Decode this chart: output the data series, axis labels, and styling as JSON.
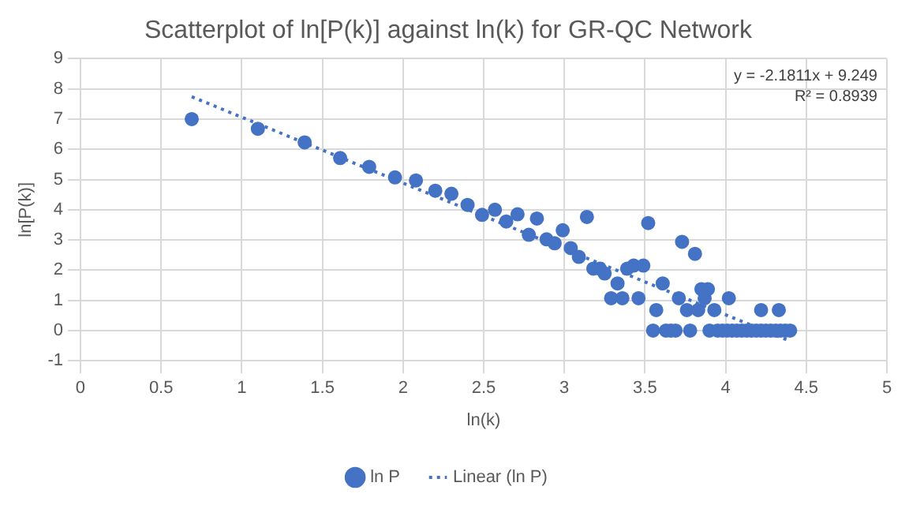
{
  "chart_data": {
    "type": "scatter",
    "title": "Scatterplot of ln[P(k)] against ln(k) for GR-QC Network",
    "xlabel": "ln(k)",
    "ylabel": "ln[P(k)]",
    "xlim": [
      0,
      5
    ],
    "xticks": [
      0,
      0.5,
      1,
      1.5,
      2,
      2.5,
      3,
      3.5,
      4,
      4.5,
      5
    ],
    "ylim": [
      -1,
      9
    ],
    "yticks": [
      -1,
      0,
      1,
      2,
      3,
      4,
      5,
      6,
      7,
      8,
      9
    ],
    "grid": true,
    "legend": "bottom",
    "annotations": [
      "y = -2.1811x + 9.249",
      "R² = 0.8939"
    ],
    "series": [
      {
        "name": "ln P",
        "type": "scatter",
        "marker": "circle",
        "color": "#4472c4",
        "x": [
          0.69,
          1.1,
          1.39,
          1.61,
          1.79,
          1.95,
          2.08,
          2.2,
          2.3,
          2.4,
          2.49,
          2.57,
          2.64,
          2.71,
          2.78,
          2.83,
          2.89,
          2.94,
          2.99,
          3.04,
          3.09,
          3.14,
          3.18,
          3.22,
          3.25,
          3.29,
          3.33,
          3.36,
          3.39,
          3.43,
          3.46,
          3.49,
          3.52,
          3.55,
          3.57,
          3.61,
          3.63,
          3.66,
          3.69,
          3.71,
          3.73,
          3.76,
          3.78,
          3.81,
          3.83,
          3.85,
          3.87,
          3.89,
          3.9,
          3.93,
          3.95,
          3.98,
          4.01,
          4.02,
          4.04,
          4.07,
          4.1,
          4.13,
          4.16,
          4.19,
          4.22,
          4.22,
          4.25,
          4.28,
          4.31,
          4.33,
          4.34,
          4.37,
          4.4
        ],
        "values": [
          7.0,
          6.68,
          6.23,
          5.71,
          5.42,
          5.07,
          4.97,
          4.63,
          4.53,
          4.16,
          3.83,
          4.0,
          3.61,
          3.85,
          3.17,
          3.71,
          3.02,
          2.89,
          3.32,
          2.73,
          2.44,
          3.76,
          2.05,
          2.05,
          1.89,
          1.07,
          1.56,
          1.07,
          2.05,
          2.15,
          1.07,
          2.15,
          3.56,
          0,
          0.68,
          1.56,
          0,
          0,
          0,
          1.07,
          2.94,
          0.68,
          0,
          2.54,
          0.68,
          1.37,
          1.07,
          1.37,
          0,
          0.68,
          0,
          0,
          0,
          1.07,
          0,
          0,
          0,
          0,
          0,
          0,
          0,
          0.68,
          0,
          0,
          0,
          0.68,
          0,
          0,
          0
        ]
      },
      {
        "name": "Linear (ln P)",
        "type": "line",
        "marker": "none",
        "line_style": "dotted",
        "color": "#4472c4",
        "x": [
          0.69,
          4.4
        ],
        "values": [
          7.74,
          -0.35
        ]
      }
    ]
  }
}
